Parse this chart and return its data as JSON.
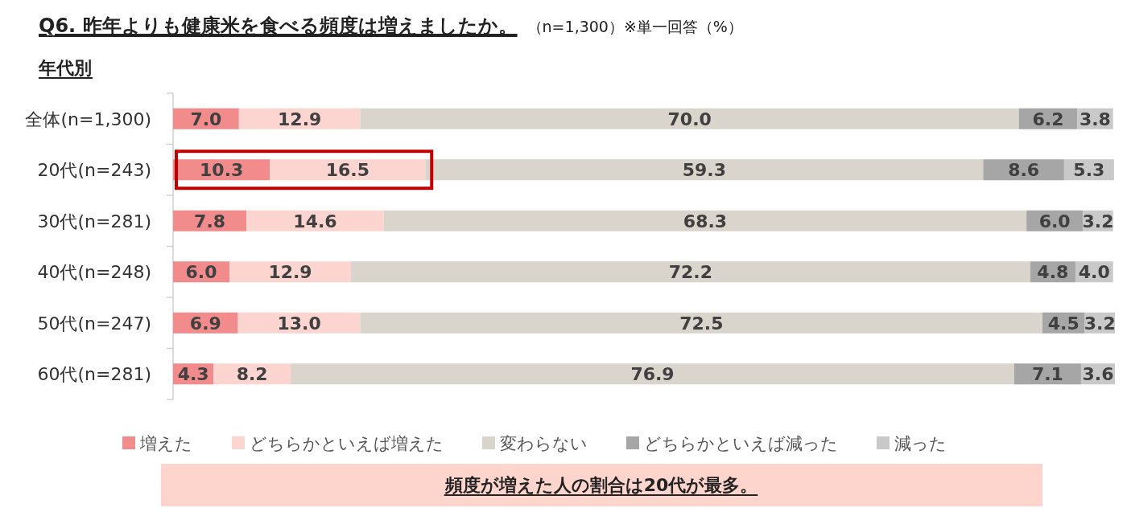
{
  "chart_data": {
    "type": "bar",
    "orientation": "horizontal",
    "stacked": true,
    "legend": "bottom",
    "title": "Q6. 昨年よりも健康米を食べる頻度は増えましたか。",
    "subtitle": "（n=1,300）※単一回答（%）",
    "annotations": [
      "年代別",
      "頻度が増えた人の割合は20代が最多。"
    ],
    "categories": [
      "全体(n=1,300)",
      "20代(n=243)",
      "30代(n=281)",
      "40代(n=248)",
      "50代(n=247)",
      "60代(n=281)"
    ],
    "series": [
      {
        "name": "増えた",
        "color": "#f28b8b",
        "values": [
          7.0,
          10.3,
          7.8,
          6.0,
          6.9,
          4.3
        ],
        "value_labels": [
          "7.0",
          "10.3",
          "7.8",
          "6.0",
          "6.9",
          "4.3"
        ]
      },
      {
        "name": "どちらかといえば増えた",
        "color": "#fdd5d0",
        "values": [
          12.9,
          16.5,
          14.6,
          12.9,
          13.0,
          8.2
        ],
        "value_labels": [
          "12.9",
          "16.5",
          "14.6",
          "12.9",
          "13.0",
          "8.2"
        ]
      },
      {
        "name": "変わらない",
        "color": "#d9d5cc",
        "values": [
          70.0,
          59.3,
          68.3,
          72.2,
          72.5,
          76.9
        ],
        "value_labels": [
          "70.0",
          "59.3",
          "68.3",
          "72.2",
          "72.5",
          "76.9"
        ]
      },
      {
        "name": "どちらかといえば減った",
        "color": "#a6a6a6",
        "values": [
          6.2,
          8.6,
          6.0,
          4.8,
          4.5,
          7.1
        ],
        "value_labels": [
          "6.2",
          "8.6",
          "6.0",
          "4.8",
          "4.5",
          "7.1"
        ]
      },
      {
        "name": "減った",
        "color": "#c9c9c9",
        "values": [
          3.8,
          5.3,
          3.2,
          4.0,
          3.2,
          3.6
        ],
        "value_labels": [
          "3.8",
          "5.3",
          "3.2",
          "4.0",
          "3.2",
          "3.6"
        ]
      }
    ]
  }
}
